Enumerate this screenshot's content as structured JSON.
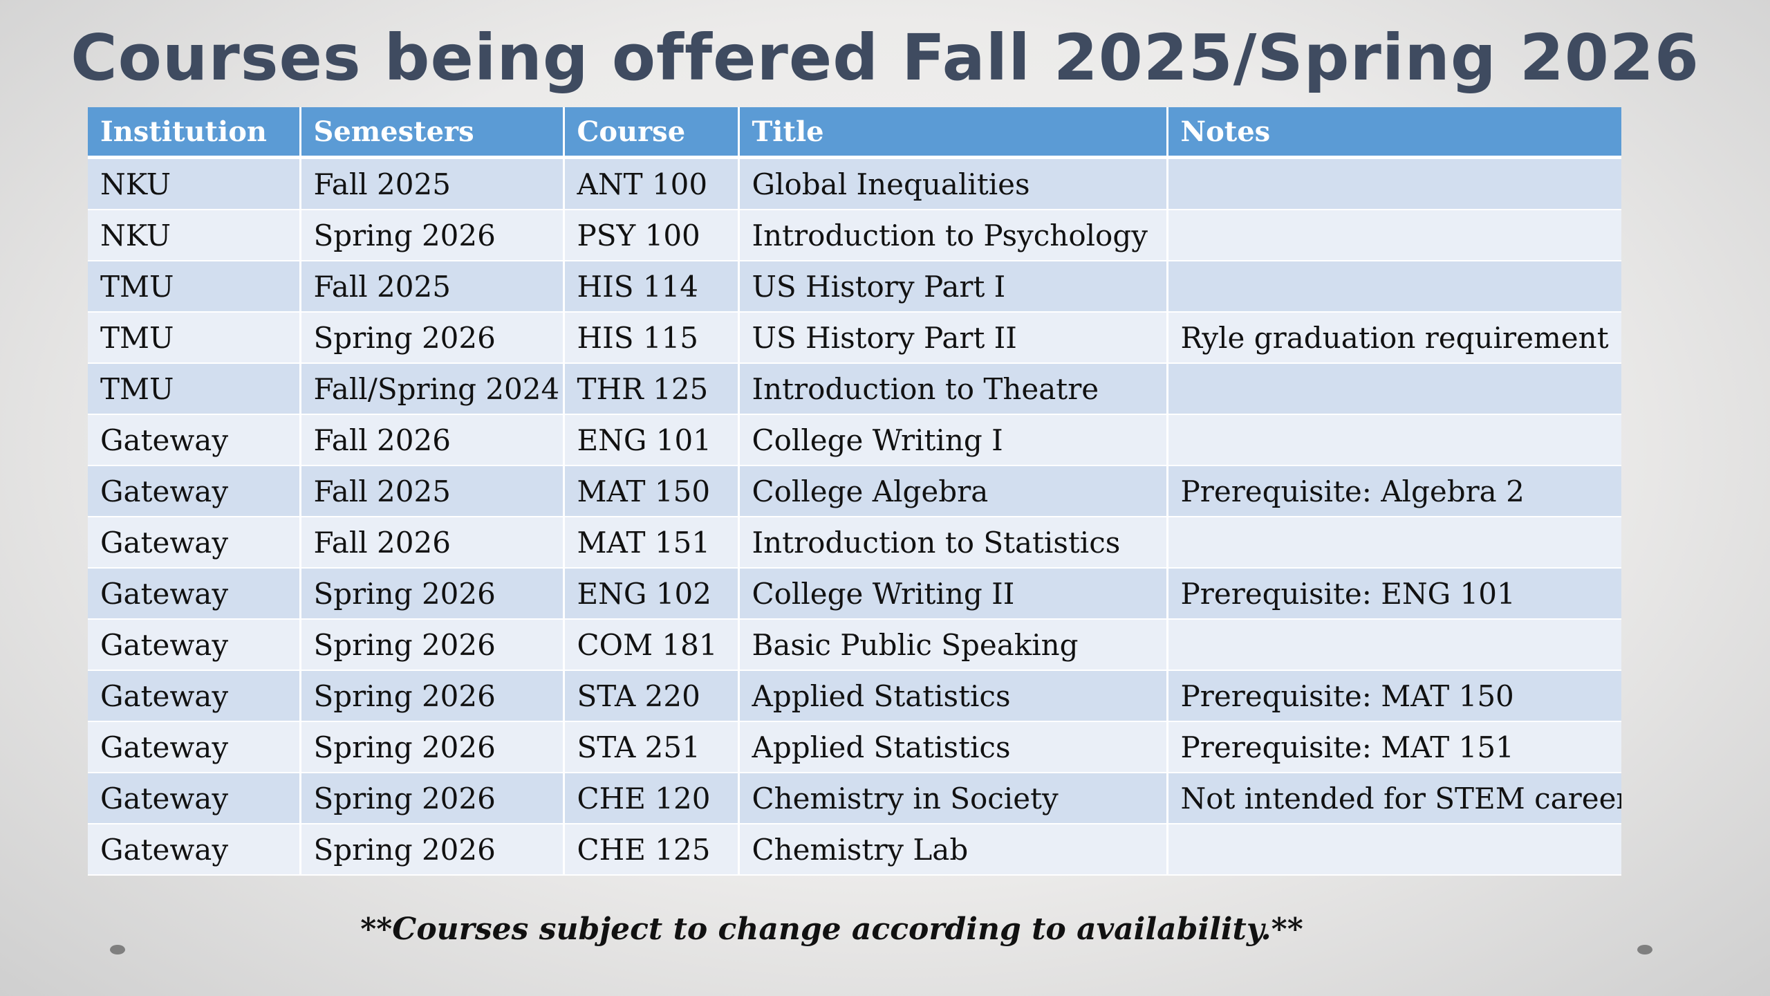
{
  "title": "Courses being offered Fall 2025/Spring 2026",
  "table": {
    "headers": [
      "Institution",
      "Semesters",
      "Course",
      "Title",
      "Notes"
    ],
    "rows": [
      [
        "NKU",
        "Fall 2025",
        "ANT 100",
        "Global Inequalities",
        ""
      ],
      [
        "NKU",
        "Spring 2026",
        "PSY 100",
        "Introduction to Psychology",
        ""
      ],
      [
        "TMU",
        "Fall 2025",
        "HIS 114",
        "US History Part I",
        ""
      ],
      [
        "TMU",
        "Spring 2026",
        "HIS 115",
        "US History Part II",
        "Ryle graduation requirement"
      ],
      [
        "TMU",
        "Fall/Spring 2024",
        "THR 125",
        "Introduction to Theatre",
        ""
      ],
      [
        "Gateway",
        "Fall 2026",
        "ENG 101",
        "College Writing I",
        ""
      ],
      [
        "Gateway",
        "Fall 2025",
        "MAT 150",
        "College Algebra",
        "Prerequisite: Algebra 2"
      ],
      [
        "Gateway",
        "Fall 2026",
        "MAT 151",
        "Introduction to Statistics",
        ""
      ],
      [
        "Gateway",
        "Spring 2026",
        "ENG 102",
        "College Writing II",
        "Prerequisite: ENG 101"
      ],
      [
        "Gateway",
        "Spring 2026",
        "COM 181",
        "Basic Public Speaking",
        ""
      ],
      [
        "Gateway",
        "Spring 2026",
        "STA 220",
        "Applied Statistics",
        "Prerequisite: MAT 150"
      ],
      [
        "Gateway",
        "Spring 2026",
        "STA 251",
        "Applied Statistics",
        "Prerequisite: MAT 151"
      ],
      [
        "Gateway",
        "Spring 2026",
        "CHE 120",
        "Chemistry in Society",
        "Not intended for STEM careers"
      ],
      [
        "Gateway",
        "Spring 2026",
        "CHE 125",
        "Chemistry Lab",
        ""
      ]
    ]
  },
  "footnote": "**Courses subject to change according to availability.**",
  "colors": {
    "header": "#5b9bd5",
    "row_odd": "#d2deef",
    "row_even": "#eaeff7",
    "title": "#3f4b60"
  }
}
